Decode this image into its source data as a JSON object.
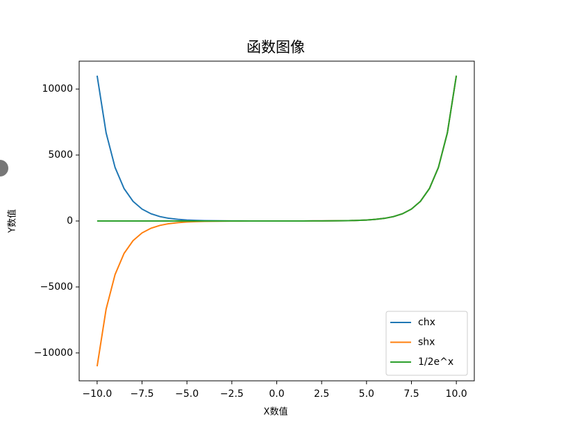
{
  "chart_data": {
    "type": "line",
    "title": "函数图像",
    "xlabel": "X数值",
    "ylabel": "Y数值",
    "x": [
      -10,
      -9.5,
      -9,
      -8.5,
      -8,
      -7.5,
      -7,
      -6.5,
      -6,
      -5.5,
      -5,
      -4.5,
      -4,
      -3.5,
      -3,
      -2.5,
      -2,
      -1.5,
      -1,
      -0.5,
      0,
      0.5,
      1,
      1.5,
      2,
      2.5,
      3,
      3.5,
      4,
      4.5,
      5,
      5.5,
      6,
      6.5,
      7,
      7.5,
      8,
      8.5,
      9,
      9.5,
      10
    ],
    "series": [
      {
        "name": "chx",
        "color": "#1f77b4",
        "values": [
          11013.2,
          6679.9,
          4051.5,
          2457.4,
          1490.5,
          904.0,
          548.3,
          332.6,
          201.7,
          122.3,
          74.2,
          45.0,
          27.3,
          16.6,
          10.1,
          6.1,
          3.8,
          2.4,
          1.5,
          1.1,
          1.0,
          1.1,
          1.5,
          2.4,
          3.8,
          6.1,
          10.1,
          16.6,
          27.3,
          45.0,
          74.2,
          122.3,
          201.7,
          332.6,
          548.3,
          904.0,
          1490.5,
          2457.4,
          4051.5,
          6679.9,
          11013.2
        ]
      },
      {
        "name": "shx",
        "color": "#ff7f0e",
        "values": [
          -11013.2,
          -6679.9,
          -4051.5,
          -2457.4,
          -1490.5,
          -904.0,
          -548.3,
          -332.6,
          -201.7,
          -122.3,
          -74.2,
          -45.0,
          -27.3,
          -16.5,
          -10.0,
          -6.1,
          -3.6,
          -2.1,
          -1.2,
          -0.5,
          0.0,
          0.5,
          1.2,
          2.1,
          3.6,
          6.1,
          10.0,
          16.5,
          27.3,
          45.0,
          74.2,
          122.3,
          201.7,
          332.6,
          548.3,
          904.0,
          1490.5,
          2457.4,
          4051.5,
          6679.9,
          11013.2
        ]
      },
      {
        "name": "1/2e^x",
        "color": "#2ca02c",
        "values": [
          0.0,
          0.0,
          0.0,
          0.0,
          0.0,
          0.0,
          0.0,
          0.0,
          0.0,
          0.0,
          0.0,
          0.0,
          0.0,
          0.0,
          0.0,
          0.0,
          0.1,
          0.1,
          0.2,
          0.3,
          0.5,
          0.8,
          1.4,
          2.2,
          3.7,
          6.1,
          10.0,
          16.6,
          27.3,
          45.0,
          74.2,
          122.3,
          201.7,
          332.6,
          548.3,
          904.0,
          1490.5,
          2457.4,
          4051.5,
          6679.9,
          11013.2
        ]
      }
    ],
    "xlim": [
      -11,
      11
    ],
    "xticks": [
      {
        "value": -10,
        "label": "−10.0"
      },
      {
        "value": -7.5,
        "label": "−7.5"
      },
      {
        "value": -5,
        "label": "−5.0"
      },
      {
        "value": -2.5,
        "label": "−2.5"
      },
      {
        "value": 0,
        "label": "0.0"
      },
      {
        "value": 2.5,
        "label": "2.5"
      },
      {
        "value": 5,
        "label": "5.0"
      },
      {
        "value": 7.5,
        "label": "7.5"
      },
      {
        "value": 10,
        "label": "10.0"
      }
    ],
    "ylim": [
      -12114,
      12114
    ],
    "yticks": [
      {
        "value": -10000,
        "label": "−10000"
      },
      {
        "value": -5000,
        "label": "−5000"
      },
      0,
      5000,
      10000
    ],
    "legend": "lower right"
  }
}
